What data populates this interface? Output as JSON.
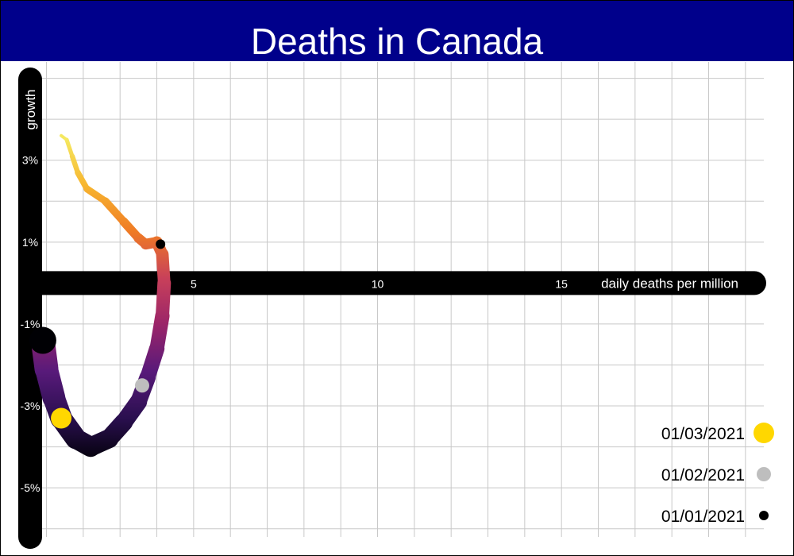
{
  "page": {
    "title": "Deaths in Canada"
  },
  "chart_data": {
    "type": "line",
    "title": "Deaths in Canada",
    "xlabel": "daily deaths per million",
    "ylabel": "growth",
    "x_ticks": [
      5,
      10,
      15
    ],
    "x_tick_labels": [
      "5",
      "10",
      "15"
    ],
    "y_ticks": [
      3,
      1,
      -1,
      -3,
      -5
    ],
    "y_tick_labels": [
      "3%",
      "1%",
      "-1%",
      "-3%",
      "-5%"
    ],
    "xlim": [
      0.6,
      20.5
    ],
    "ylim": [
      -6.2,
      5.4
    ],
    "grid": true,
    "x_grid_step": 1,
    "y_grid_step": 1,
    "series": [
      {
        "x": [
          1.4,
          1.55,
          1.7,
          1.85,
          2.1,
          2.6,
          3.1,
          3.5,
          3.7,
          4.0,
          4.15,
          4.2,
          4.15,
          4.0,
          3.75,
          3.5,
          3.1,
          2.7,
          2.2,
          1.8,
          1.4,
          1.2,
          1.0,
          0.9
        ],
        "y": [
          3.6,
          3.5,
          3.1,
          2.7,
          2.3,
          2.0,
          1.5,
          1.1,
          0.95,
          1.0,
          0.7,
          0.0,
          -0.8,
          -1.6,
          -2.3,
          -2.9,
          -3.4,
          -3.8,
          -4.0,
          -3.8,
          -3.3,
          -2.8,
          -2.1,
          -1.4
        ],
        "gradient": [
          "#f5e860",
          "#f7b52f",
          "#ef7a25",
          "#c8405a",
          "#9a2469",
          "#581a7a",
          "#2a0f4f",
          "#000004"
        ]
      }
    ],
    "markers": [
      {
        "label": "01/03/2021",
        "x": 1.4,
        "y": -3.3,
        "color": "#ffd700"
      },
      {
        "label": "01/02/2021",
        "x": 3.6,
        "y": -2.5,
        "color": "#bebebe"
      },
      {
        "label": "01/01/2021",
        "x": 4.1,
        "y": 0.95,
        "color": "#000000"
      }
    ],
    "legend_position": "bottom-right",
    "legend": [
      {
        "label": "01/03/2021",
        "color": "#ffd700"
      },
      {
        "label": "01/02/2021",
        "color": "#bebebe"
      },
      {
        "label": "01/01/2021",
        "color": "#000000"
      }
    ]
  }
}
